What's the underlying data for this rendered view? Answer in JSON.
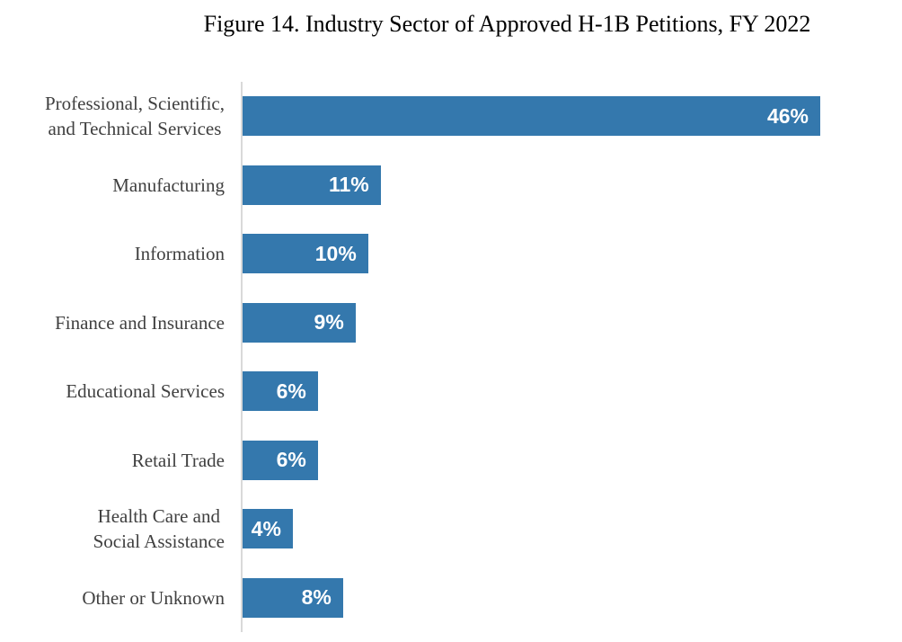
{
  "chart_data": {
    "type": "bar",
    "orientation": "horizontal",
    "title": "Figure 14. Industry Sector of Approved H-1B Petitions, FY 2022",
    "categories": [
      "Professional, Scientific,\nand Technical Services",
      "Manufacturing",
      "Information",
      "Finance and Insurance",
      "Educational Services",
      "Retail Trade",
      "Health Care and\nSocial Assistance",
      "Other or Unknown"
    ],
    "values": [
      46,
      11,
      10,
      9,
      6,
      6,
      4,
      8
    ],
    "value_labels": [
      "46%",
      "11%",
      "10%",
      "9%",
      "6%",
      "6%",
      "4%",
      "8%"
    ],
    "unit": "percent",
    "xlim": [
      0,
      46
    ],
    "grid": false,
    "legend": false,
    "data_label_position": "inside-end",
    "colors": {
      "bar": "#3478AD",
      "category_label": "#404040",
      "value_label": "#FFFFFF",
      "axis_line": "#D9D9D9",
      "title": "#000000"
    }
  }
}
